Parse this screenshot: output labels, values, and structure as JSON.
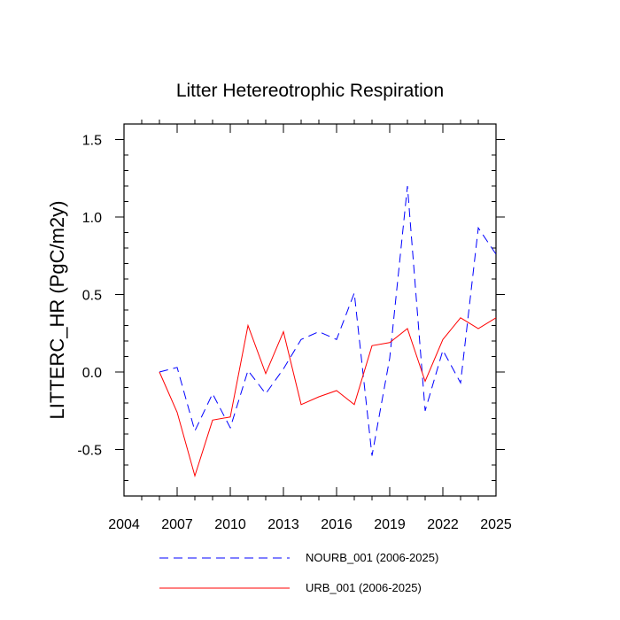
{
  "chart_data": {
    "type": "line",
    "title": "Litter Hetereotrophic Respiration",
    "xlabel": "",
    "ylabel": "LITTERC_HR  (PgC/m2y)",
    "xlim": [
      2004,
      2025
    ],
    "ylim": [
      -0.8,
      1.6
    ],
    "xticks": [
      2004,
      2007,
      2010,
      2013,
      2016,
      2019,
      2022,
      2025
    ],
    "yticks": [
      -0.5,
      0.0,
      0.5,
      1.0,
      1.5
    ],
    "ytick_labels": [
      "-0.5",
      "0.0",
      "0.5",
      "1.0",
      "1.5"
    ],
    "x": [
      2006,
      2007,
      2008,
      2009,
      2010,
      2011,
      2012,
      2013,
      2014,
      2015,
      2016,
      2017,
      2018,
      2019,
      2020,
      2021,
      2022,
      2023,
      2024,
      2025
    ],
    "series": [
      {
        "name": "NOURB_001 (2006-2025)",
        "color": "#0000ff",
        "style": "dashed",
        "values": [
          0.0,
          0.03,
          -0.38,
          -0.14,
          -0.36,
          0.01,
          -0.14,
          0.02,
          0.21,
          0.26,
          0.21,
          0.51,
          -0.54,
          0.09,
          1.2,
          -0.25,
          0.14,
          -0.07,
          0.93,
          0.76
        ]
      },
      {
        "name": "URB_001 (2006-2025)",
        "color": "#ff0000",
        "style": "solid",
        "values": [
          0.0,
          -0.26,
          -0.67,
          -0.31,
          -0.29,
          0.3,
          -0.01,
          0.26,
          -0.21,
          -0.16,
          -0.12,
          -0.21,
          0.17,
          0.19,
          0.28,
          -0.06,
          0.21,
          0.35,
          0.28,
          0.35
        ]
      }
    ]
  }
}
